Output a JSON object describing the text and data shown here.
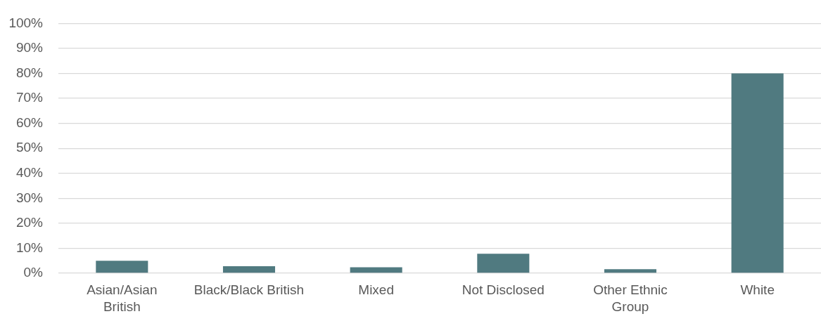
{
  "chart_data": {
    "type": "bar",
    "categories": [
      "Asian/Asian British",
      "Black/Black British",
      "Mixed",
      "Not Disclosed",
      "Other Ethnic Group",
      "White"
    ],
    "values": [
      5.0,
      2.8,
      2.4,
      7.8,
      1.6,
      80
    ],
    "color": "#507a80",
    "ylim": [
      0,
      100
    ],
    "yticks": [
      {
        "value": 0,
        "label": "0%"
      },
      {
        "value": 10,
        "label": "10%"
      },
      {
        "value": 20,
        "label": "20%"
      },
      {
        "value": 30,
        "label": "30%"
      },
      {
        "value": 40,
        "label": "40%"
      },
      {
        "value": 50,
        "label": "50%"
      },
      {
        "value": 60,
        "label": "60%"
      },
      {
        "value": 70,
        "label": "70%"
      },
      {
        "value": 80,
        "label": "80%"
      },
      {
        "value": 90,
        "label": "90%"
      },
      {
        "value": 100,
        "label": "100%"
      }
    ],
    "grid": "y"
  }
}
